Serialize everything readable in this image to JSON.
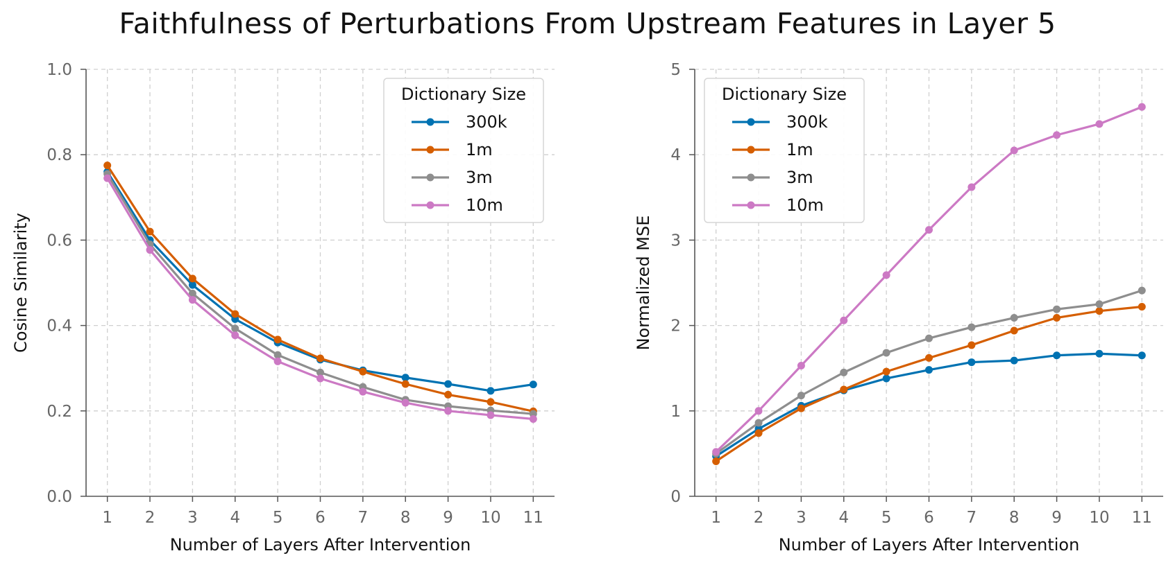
{
  "title": "Faithfulness of Perturbations From Upstream Features in Layer 5",
  "colors": {
    "300k": "#0072B2",
    "1m": "#D55E00",
    "3m": "#8E8E8E",
    "10m": "#CC79C4",
    "grid": "#cfcfcf",
    "axis": "#555555"
  },
  "chart_data": [
    {
      "type": "line",
      "xlabel": "Number of Layers After Intervention",
      "ylabel": "Cosine Similarity",
      "x": [
        1,
        2,
        3,
        4,
        5,
        6,
        7,
        8,
        9,
        10,
        11
      ],
      "xticks": [
        "1",
        "2",
        "3",
        "4",
        "5",
        "6",
        "7",
        "8",
        "9",
        "10",
        "11"
      ],
      "ylim": [
        0,
        1
      ],
      "yticks": [
        "0.0",
        "0.2",
        "0.4",
        "0.6",
        "0.8",
        "1.0"
      ],
      "grid": true,
      "legend": {
        "title": "Dictionary Size",
        "position": "upper right"
      },
      "series": [
        {
          "name": "300k",
          "color_key": "300k",
          "values": [
            0.76,
            0.6,
            0.495,
            0.415,
            0.36,
            0.32,
            0.295,
            0.278,
            0.263,
            0.247,
            0.262
          ]
        },
        {
          "name": "1m",
          "color_key": "1m",
          "values": [
            0.775,
            0.62,
            0.51,
            0.427,
            0.367,
            0.323,
            0.292,
            0.263,
            0.238,
            0.221,
            0.199
          ]
        },
        {
          "name": "3m",
          "color_key": "3m",
          "values": [
            0.755,
            0.59,
            0.475,
            0.393,
            0.331,
            0.29,
            0.256,
            0.226,
            0.211,
            0.201,
            0.193
          ]
        },
        {
          "name": "10m",
          "color_key": "10m",
          "values": [
            0.745,
            0.577,
            0.46,
            0.377,
            0.316,
            0.276,
            0.245,
            0.219,
            0.2,
            0.19,
            0.181
          ]
        }
      ]
    },
    {
      "type": "line",
      "xlabel": "Number of Layers After Intervention",
      "ylabel": "Normalized MSE",
      "x": [
        1,
        2,
        3,
        4,
        5,
        6,
        7,
        8,
        9,
        10,
        11
      ],
      "xticks": [
        "1",
        "2",
        "3",
        "4",
        "5",
        "6",
        "7",
        "8",
        "9",
        "10",
        "11"
      ],
      "ylim": [
        0,
        5
      ],
      "yticks": [
        "0",
        "1",
        "2",
        "3",
        "4",
        "5"
      ],
      "grid": true,
      "legend": {
        "title": "Dictionary Size",
        "position": "upper left"
      },
      "series": [
        {
          "name": "300k",
          "color_key": "300k",
          "values": [
            0.47,
            0.79,
            1.06,
            1.24,
            1.38,
            1.48,
            1.57,
            1.59,
            1.65,
            1.67,
            1.65
          ]
        },
        {
          "name": "1m",
          "color_key": "1m",
          "values": [
            0.41,
            0.74,
            1.03,
            1.25,
            1.46,
            1.62,
            1.77,
            1.94,
            2.09,
            2.17,
            2.22
          ]
        },
        {
          "name": "3m",
          "color_key": "3m",
          "values": [
            0.5,
            0.86,
            1.18,
            1.45,
            1.68,
            1.85,
            1.98,
            2.09,
            2.19,
            2.25,
            2.41
          ]
        },
        {
          "name": "10m",
          "color_key": "10m",
          "values": [
            0.52,
            1.0,
            1.53,
            2.06,
            2.59,
            3.12,
            3.62,
            4.05,
            4.23,
            4.36,
            4.56
          ]
        }
      ]
    }
  ]
}
